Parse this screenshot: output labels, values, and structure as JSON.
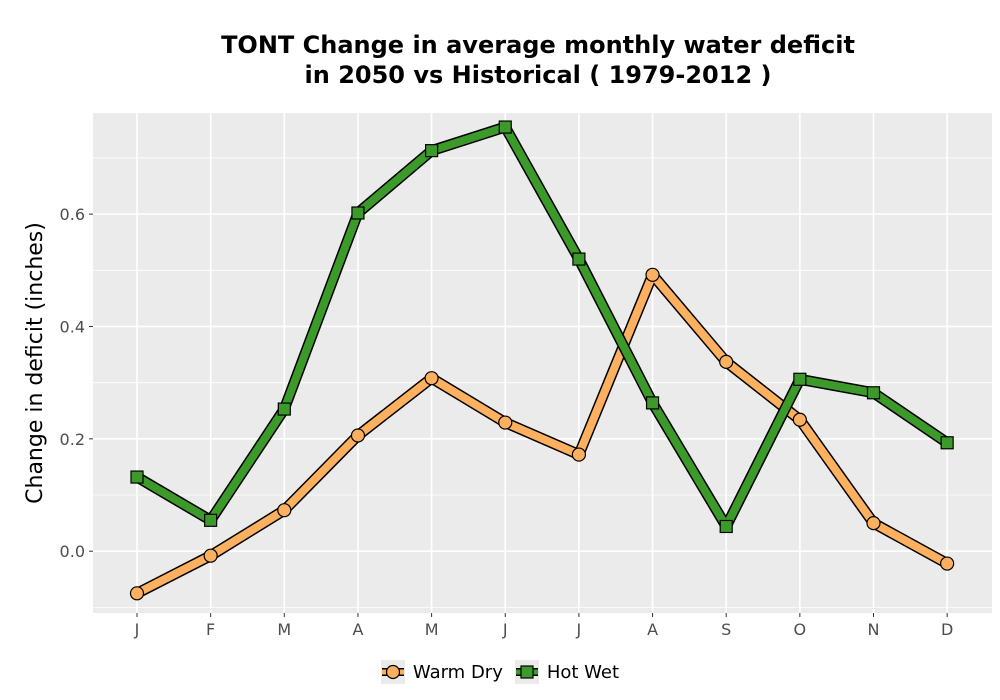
{
  "chart_data": {
    "type": "line",
    "title_lines": [
      "TONT  Change in average monthly water deficit",
      "in 2050 vs Historical ( 1979-2012 )"
    ],
    "xlabel": "",
    "ylabel": "Change in deficit (inches)",
    "categories": [
      "J",
      "F",
      "M",
      "A",
      "M",
      "J",
      "J",
      "A",
      "S",
      "O",
      "N",
      "D"
    ],
    "ylim": [
      -0.11,
      0.78
    ],
    "yticks": [
      0.0,
      0.2,
      0.4,
      0.6
    ],
    "ytick_labels": [
      "0.0",
      "0.2",
      "0.4",
      "0.6"
    ],
    "grid": true,
    "legend_position": "bottom",
    "series": [
      {
        "name": "Warm Dry",
        "color": "#fdb05f",
        "marker": "circle",
        "values": [
          -0.075,
          -0.008,
          0.073,
          0.206,
          0.308,
          0.229,
          0.172,
          0.492,
          0.337,
          0.234,
          0.05,
          -0.022
        ]
      },
      {
        "name": "Hot Wet",
        "color": "#3c9a2a",
        "marker": "square",
        "values": [
          0.132,
          0.055,
          0.253,
          0.602,
          0.713,
          0.755,
          0.52,
          0.264,
          0.044,
          0.306,
          0.282,
          0.193
        ]
      }
    ]
  }
}
